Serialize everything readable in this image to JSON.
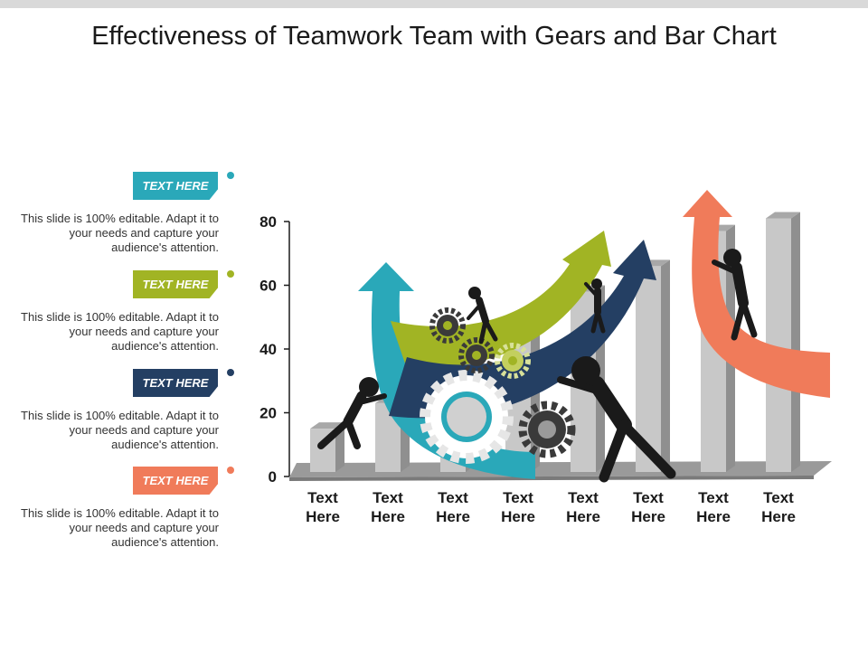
{
  "title": "Effectiveness of Teamwork Team with Gears and Bar Chart",
  "labels": [
    {
      "tag": "TEXT HERE",
      "color": "#2aa8b9",
      "text": "This slide is 100% editable. Adapt it to your needs and capture your audience's attention."
    },
    {
      "tag": "TEXT HERE",
      "color": "#a1b424",
      "text": "This slide is 100% editable. Adapt it to your needs and capture your audience's attention."
    },
    {
      "tag": "TEXT HERE",
      "color": "#243f63",
      "text": "This slide is 100% editable. Adapt it to your needs and capture your audience's attention."
    },
    {
      "tag": "TEXT HERE",
      "color": "#f07b5a",
      "text": "This slide is 100% editable. Adapt it to your needs and capture your audience's attention."
    }
  ],
  "chart_data": {
    "type": "bar",
    "categories": [
      "Text\nHere",
      "Text\nHere",
      "Text\nHere",
      "Text\nHere",
      "Text\nHere",
      "Text\nHere",
      "Text\nHere",
      "Text\nHere"
    ],
    "values": [
      15,
      23,
      35,
      45,
      58,
      66,
      77,
      81
    ],
    "yticks": [
      0,
      20,
      40,
      60,
      80
    ],
    "ylim": [
      0,
      80
    ],
    "grid": false,
    "bar_color": "#c8c8c8"
  },
  "arrow_colors": {
    "teal": "#2aa8b9",
    "olive": "#a1b424",
    "navy": "#243f63",
    "coral": "#f07b5a",
    "figure": "#1a1a1a",
    "gear": "#3a3a3a"
  }
}
